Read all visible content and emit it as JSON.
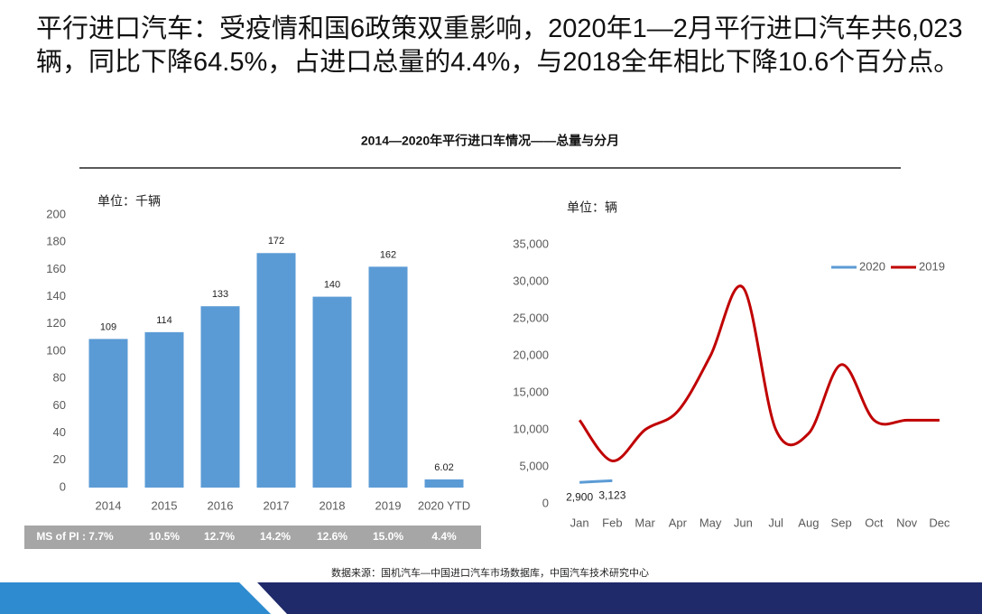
{
  "headline": "平行进口汽车：受疫情和国6政策双重影响，2020年1—2月平行进口汽车共6,023辆，同比下降64.5%，占进口总量的4.4%，与2018全年相比下降10.6个百分点。",
  "section_title": "2014—2020年平行进口车情况——总量与分月",
  "chart_data": [
    {
      "type": "bar",
      "unit_label": "单位：千辆",
      "categories": [
        "2014",
        "2015",
        "2016",
        "2017",
        "2018",
        "2019",
        "2020 YTD"
      ],
      "values": [
        109,
        114,
        133,
        172,
        140,
        162,
        6.02
      ],
      "color": "#5b9bd5",
      "ylim": [
        0,
        200
      ],
      "yticks": [
        0,
        20,
        40,
        60,
        80,
        100,
        120,
        140,
        160,
        180,
        200
      ],
      "grid": false
    },
    {
      "type": "line",
      "unit_label": "单位：辆",
      "categories": [
        "Jan",
        "Feb",
        "Mar",
        "Apr",
        "May",
        "Jun",
        "Jul",
        "Aug",
        "Sep",
        "Oct",
        "Nov",
        "Dec"
      ],
      "series": [
        {
          "name": "2020",
          "color": "#5b9bd5",
          "values": [
            2900,
            3123,
            null,
            null,
            null,
            null,
            null,
            null,
            null,
            null,
            null,
            null
          ],
          "value_labels": [
            "2,900",
            "3,123",
            null,
            null,
            null,
            null,
            null,
            null,
            null,
            null,
            null,
            null
          ]
        },
        {
          "name": "2019",
          "color": "#c00000",
          "values": [
            11300,
            5800,
            10000,
            12500,
            20000,
            29200,
            10000,
            9500,
            18800,
            11300,
            11300,
            11300
          ]
        }
      ],
      "ylim": [
        0,
        35000
      ],
      "yticks": [
        0,
        {
          "value": 5000,
          "label": "5,000"
        },
        {
          "value": 10000,
          "label": "10,000"
        },
        {
          "value": 15000,
          "label": "15,000"
        },
        {
          "value": 20000,
          "label": "20,000"
        },
        {
          "value": 25000,
          "label": "25,000"
        },
        {
          "value": 30000,
          "label": "30,000"
        },
        {
          "value": 35000,
          "label": "35,000"
        }
      ],
      "legend": "top-right",
      "grid": false
    }
  ],
  "ms_row": {
    "label": "MS of PI : 7.7%",
    "values": [
      "10.5%",
      "12.7%",
      "14.2%",
      "12.6%",
      "15.0%",
      "4.4%"
    ]
  },
  "source": "数据来源：国机汽车—中国进口汽车市场数据库，中国汽车技术研究中心"
}
